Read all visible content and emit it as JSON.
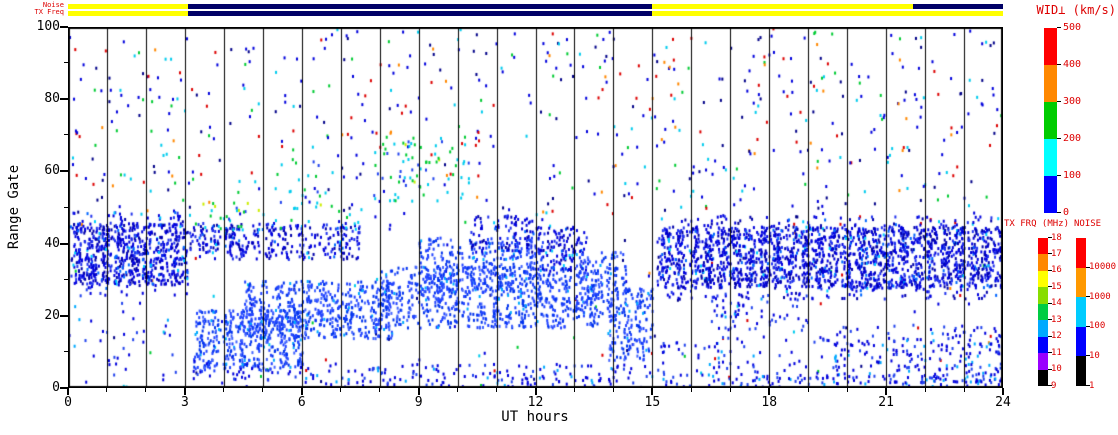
{
  "theme": {
    "label_red": "#dd0000",
    "axis_black": "#000000",
    "bar_yellow": "#ffff00",
    "bar_navy": "#000066",
    "background": "#ffffff"
  },
  "top_bars": {
    "rows": [
      {
        "label": "Noise",
        "segments": [
          {
            "x0": 0,
            "x1": 3.08,
            "color": "#ffff00"
          },
          {
            "x0": 3.08,
            "x1": 15.0,
            "color": "#000066"
          },
          {
            "x0": 15.0,
            "x1": 21.7,
            "color": "#ffff00"
          },
          {
            "x0": 21.7,
            "x1": 24.0,
            "color": "#000066"
          }
        ]
      },
      {
        "label": "TX Freq",
        "segments": [
          {
            "x0": 0,
            "x1": 3.08,
            "color": "#ffff00"
          },
          {
            "x0": 3.08,
            "x1": 15.0,
            "color": "#000066"
          },
          {
            "x0": 15.0,
            "x1": 24.0,
            "color": "#ffff00"
          }
        ]
      }
    ]
  },
  "chart_data": {
    "type": "scatter",
    "title": "WID⊥ (km/s)",
    "xlabel": "UT hours",
    "ylabel": "Range Gate",
    "xlim": [
      0,
      24
    ],
    "ylim": [
      0,
      100
    ],
    "x_major_ticks": [
      0,
      3,
      6,
      9,
      12,
      15,
      18,
      21,
      24
    ],
    "x_minor_step": 1,
    "y_major_ticks": [
      0,
      20,
      40,
      60,
      80,
      100
    ],
    "y_minor_step": 10,
    "grid_x_step": 1,
    "grid": "vertical-hourly-black-lines",
    "palettes": {
      "dense": [
        [
          "#0000dd",
          0.5
        ],
        [
          "#0000aa",
          0.2
        ],
        [
          "#2233ee",
          0.2
        ],
        [
          "#0066ff",
          0.07
        ],
        [
          "#00ccff",
          0.03
        ]
      ],
      "bright": [
        [
          "#2244ff",
          0.45
        ],
        [
          "#0033ee",
          0.35
        ],
        [
          "#4466ff",
          0.15
        ],
        [
          "#00aaff",
          0.05
        ]
      ],
      "sparse_blue": [
        [
          "#0000dd",
          0.6
        ],
        [
          "#2244ee",
          0.25
        ],
        [
          "#00aaff",
          0.15
        ]
      ],
      "cyan_green": [
        [
          "#00ccee",
          0.4
        ],
        [
          "#00cc33",
          0.3
        ],
        [
          "#2244ee",
          0.2
        ],
        [
          "#ccee00",
          0.1
        ]
      ],
      "noise_mix": [
        [
          "#0000dd",
          0.4
        ],
        [
          "#00ccee",
          0.14
        ],
        [
          "#00cc33",
          0.1
        ],
        [
          "#dd0000",
          0.14
        ],
        [
          "#ff8800",
          0.06
        ],
        [
          "#000088",
          0.16
        ]
      ]
    },
    "bands": [
      {
        "x0": 0,
        "x1": 24,
        "g0": 0,
        "g1": 100,
        "d": 0.006,
        "p": "noise_mix"
      },
      {
        "x0": 0,
        "x1": 3,
        "g0": 45,
        "g1": 100,
        "d": 0.016,
        "p": "noise_mix"
      },
      {
        "x0": 15,
        "x1": 24,
        "g0": 45,
        "g1": 100,
        "d": 0.016,
        "p": "noise_mix"
      },
      {
        "x0": 3,
        "x1": 15,
        "g0": 48,
        "g1": 100,
        "d": 0.011,
        "p": "noise_mix"
      },
      {
        "x0": 0,
        "x1": 3,
        "g0": 0,
        "g1": 28,
        "d": 0.018,
        "p": "sparse_blue"
      },
      {
        "x0": 0.05,
        "x1": 3.05,
        "g0": 29,
        "g1": 46,
        "d": 0.55,
        "p": "dense",
        "s": true
      },
      {
        "x0": 0.05,
        "x1": 3.05,
        "g0": 26,
        "g1": 49,
        "d": 0.1,
        "p": "dense"
      },
      {
        "x0": 3.1,
        "x1": 7.5,
        "g0": 36,
        "g1": 46,
        "d": 0.32,
        "p": "dense",
        "s": true
      },
      {
        "x0": 3.1,
        "x1": 7.5,
        "g0": 44,
        "g1": 52,
        "d": 0.06,
        "p": "cyan_green"
      },
      {
        "x0": 3.2,
        "x1": 6.0,
        "g0": 5,
        "g1": 22,
        "d": 0.4,
        "p": "bright",
        "s": true
      },
      {
        "x0": 4.5,
        "x1": 8.3,
        "g0": 14,
        "g1": 30,
        "d": 0.4,
        "p": "bright",
        "s": true
      },
      {
        "x0": 8.0,
        "x1": 13.6,
        "g0": 17,
        "g1": 34,
        "d": 0.34,
        "p": "bright",
        "s": true
      },
      {
        "x0": 9.0,
        "x1": 12.2,
        "g0": 27,
        "g1": 42,
        "d": 0.26,
        "p": "bright",
        "s": true
      },
      {
        "x0": 10.3,
        "x1": 12.3,
        "g0": 38,
        "g1": 48,
        "d": 0.22,
        "p": "dense"
      },
      {
        "x0": 12.0,
        "x1": 13.3,
        "g0": 32,
        "g1": 45,
        "d": 0.3,
        "p": "dense"
      },
      {
        "x0": 13.0,
        "x1": 14.3,
        "g0": 20,
        "g1": 38,
        "d": 0.32,
        "p": "bright",
        "s": true
      },
      {
        "x0": 13.8,
        "x1": 15.0,
        "g0": 8,
        "g1": 28,
        "d": 0.34,
        "p": "bright",
        "s": true
      },
      {
        "x0": 3.2,
        "x1": 7.0,
        "g0": 0,
        "g1": 8,
        "d": 0.07,
        "p": "sparse_blue"
      },
      {
        "x0": 7.0,
        "x1": 15.0,
        "g0": 0,
        "g1": 7,
        "d": 0.13,
        "p": "sparse_blue"
      },
      {
        "x0": 7.8,
        "x1": 10.3,
        "g0": 52,
        "g1": 70,
        "d": 0.07,
        "p": "cyan_green"
      },
      {
        "x0": 5.3,
        "x1": 6.6,
        "g0": 52,
        "g1": 64,
        "d": 0.04,
        "p": "cyan_green"
      },
      {
        "x0": 15.1,
        "x1": 23.95,
        "g0": 28,
        "g1": 45,
        "d": 0.5,
        "p": "dense",
        "s": true
      },
      {
        "x0": 15.1,
        "x1": 23.95,
        "g0": 25,
        "g1": 48,
        "d": 0.1,
        "p": "dense"
      },
      {
        "x0": 15.1,
        "x1": 23.95,
        "g0": 0,
        "g1": 15,
        "d": 0.06,
        "p": "sparse_blue"
      },
      {
        "x0": 15.1,
        "x1": 23.95,
        "g0": 0,
        "g1": 4,
        "d": 0.12,
        "p": "sparse_blue"
      },
      {
        "x0": 16.5,
        "x1": 19.0,
        "g0": 16,
        "g1": 27,
        "d": 0.1,
        "p": "sparse_blue"
      },
      {
        "x0": 19.5,
        "x1": 24.0,
        "g0": 2,
        "g1": 18,
        "d": 0.08,
        "p": "sparse_blue"
      }
    ],
    "colorbars": [
      {
        "id": "wid",
        "title": "WID⊥ (km/s)",
        "tick_labels": [
          "0",
          "100",
          "200",
          "300",
          "400",
          "500"
        ],
        "segment_colors": [
          "#0000ff",
          "#00ffff",
          "#00cc00",
          "#ff8800",
          "#ff0000"
        ]
      },
      {
        "id": "txfrq",
        "title": "TX FRQ (MHz)",
        "tick_labels": [
          "9",
          "10",
          "11",
          "12",
          "13",
          "14",
          "15",
          "16",
          "17",
          "18"
        ],
        "segment_colors": [
          "#000000",
          "#9900ff",
          "#0000ff",
          "#00aaff",
          "#00cc44",
          "#88dd00",
          "#ffff00",
          "#ff8800",
          "#ff0000"
        ]
      },
      {
        "id": "noise",
        "title": "NOISE",
        "tick_labels": [
          "1",
          "10",
          "100",
          "1000",
          "10000"
        ],
        "segment_colors": [
          "#000000",
          "#0000ff",
          "#00ccff",
          "#ff9900",
          "#ff0000"
        ]
      }
    ]
  }
}
